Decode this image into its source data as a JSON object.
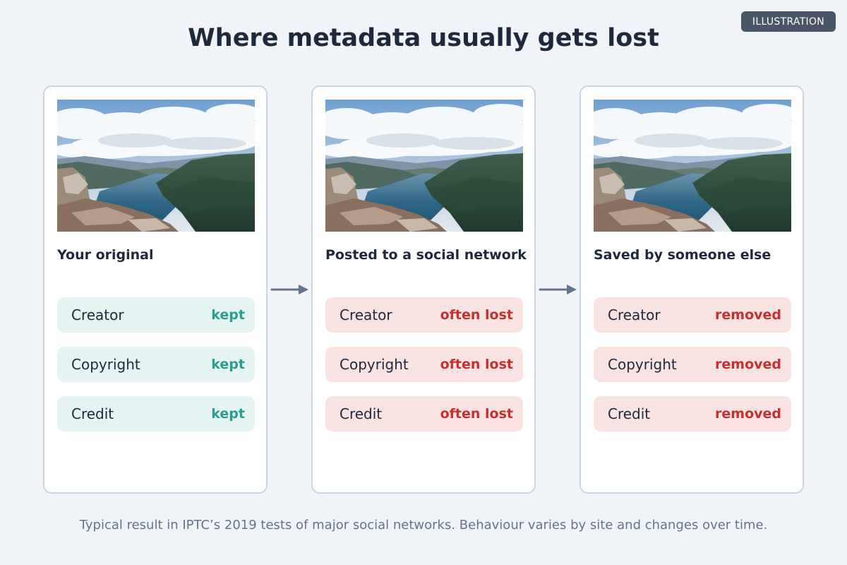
{
  "badge": "ILLUSTRATION",
  "title": "Where metadata usually gets lost",
  "cards": [
    {
      "label": "Your original",
      "fields": [
        {
          "name": "Creator",
          "status": "kept"
        },
        {
          "name": "Copyright",
          "status": "kept"
        },
        {
          "name": "Credit",
          "status": "kept"
        }
      ]
    },
    {
      "label": "Posted to a social network",
      "fields": [
        {
          "name": "Creator",
          "status": "often lost"
        },
        {
          "name": "Copyright",
          "status": "often lost"
        },
        {
          "name": "Credit",
          "status": "often lost"
        }
      ]
    },
    {
      "label": "Saved by someone else",
      "fields": [
        {
          "name": "Creator",
          "status": "removed"
        },
        {
          "name": "Copyright",
          "status": "removed"
        },
        {
          "name": "Credit",
          "status": "removed"
        }
      ]
    }
  ],
  "footnote": "Typical result in IPTC’s 2019 tests of major social networks. Behaviour varies by site and changes over time.",
  "colors": {
    "kept": "#2a9d8f",
    "kept_bg": "#e5f3f2",
    "lost": "#c53030",
    "lost_bg": "#f9e2e2",
    "arrow": "#64748b"
  }
}
